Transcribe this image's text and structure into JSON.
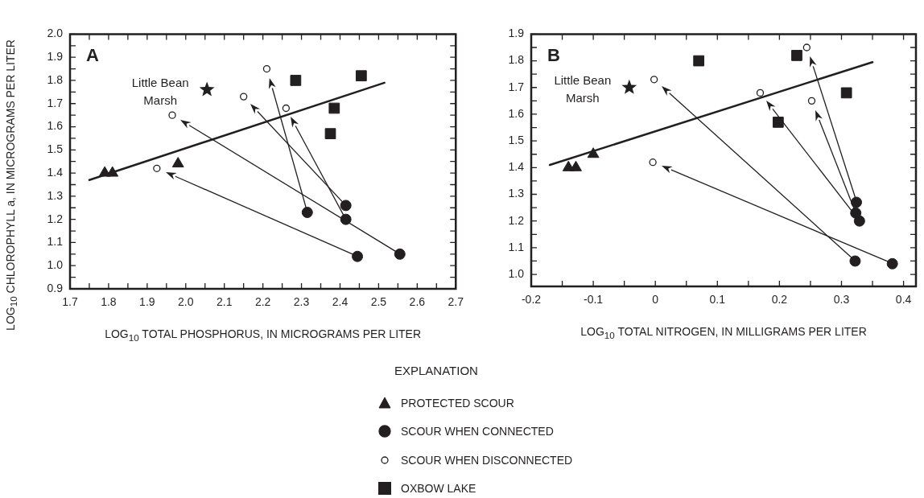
{
  "chart_data": [
    {
      "type": "scatter",
      "title": "A",
      "xlabel": "LOG$_{10}$ TOTAL PHOSPHORUS, IN MICROGRAMS PER LITER",
      "ylabel": "LOG$_{10}$ CHLOROPHYLL a, IN MICROGRAMS PER LITER",
      "legend_title": "EXPLANATION",
      "legend": "bottom",
      "xlim": [
        1.7,
        2.7
      ],
      "ylim": [
        0.9,
        2.0
      ],
      "xticks": [
        1.7,
        {
          "value": 1.75,
          "label": null
        },
        1.8,
        {
          "value": 1.85,
          "label": null
        },
        1.9,
        {
          "value": 1.95,
          "label": null
        },
        {
          "value": 2,
          "label": "2.0"
        },
        {
          "value": 2.05,
          "label": null
        },
        2.1,
        {
          "value": 2.15,
          "label": null
        },
        2.2,
        {
          "value": 2.25,
          "label": null
        },
        2.3,
        {
          "value": 2.35,
          "label": null
        },
        2.4,
        {
          "value": 2.45,
          "label": null
        },
        2.5,
        {
          "value": 2.55,
          "label": null
        },
        2.6,
        {
          "value": 2.65,
          "label": null
        },
        2.7
      ],
      "yticks": [
        0.9,
        {
          "value": 0.95,
          "label": null
        },
        {
          "value": 1,
          "label": "1.0"
        },
        {
          "value": 1.05,
          "label": null
        },
        1.1,
        {
          "value": 1.15,
          "label": null
        },
        1.2,
        {
          "value": 1.25,
          "label": null
        },
        1.3,
        {
          "value": 1.35,
          "label": null
        },
        1.4,
        {
          "value": 1.45,
          "label": null
        },
        1.5,
        {
          "value": 1.55,
          "label": null
        },
        1.6,
        {
          "value": 1.65,
          "label": null
        },
        1.7,
        {
          "value": 1.75,
          "label": null
        },
        1.8,
        {
          "value": 1.85,
          "label": null
        },
        1.9,
        {
          "value": 1.95,
          "label": null
        },
        {
          "value": 2,
          "label": "2.0"
        }
      ],
      "series": [
        {
          "name": "PROTECTED SCOUR",
          "type": "scatter",
          "marker": "triangle",
          "color": "#231f20",
          "x": [
            1.79,
            1.81,
            1.98
          ],
          "values": [
            1.4,
            1.4,
            1.44
          ]
        },
        {
          "name": "SCOUR WHEN CONNECTED",
          "type": "scatter",
          "marker": "circle",
          "color": "#231f20",
          "x": [
            2.315,
            2.415,
            2.415,
            2.445,
            2.555
          ],
          "values": [
            1.23,
            1.26,
            1.2,
            1.04,
            1.05
          ]
        },
        {
          "name": "SCOUR WHEN DISCONNECTED",
          "type": "scatter",
          "marker": "circle",
          "color": "#ffffff",
          "x": [
            2.21,
            2.15,
            2.26,
            1.925,
            1.965
          ],
          "values": [
            1.85,
            1.73,
            1.68,
            1.42,
            1.65
          ]
        },
        {
          "name": "OXBOW LAKE",
          "type": "scatter",
          "marker": "square",
          "color": "#231f20",
          "x": [
            2.285,
            2.455,
            2.385,
            2.375
          ],
          "values": [
            1.8,
            1.82,
            1.68,
            1.57
          ]
        },
        {
          "name": "Little Bean Marsh",
          "type": "scatter",
          "marker": "star",
          "color": "#231f20",
          "x": [
            2.055
          ],
          "values": [
            1.76
          ]
        },
        {
          "type": "line",
          "marker": "none",
          "line_style": "solid",
          "color": "#231f20",
          "x": [
            1.75,
            2.515
          ],
          "values": [
            1.37,
            1.79
          ]
        }
      ]
    },
    {
      "type": "scatter",
      "title": "B",
      "xlabel": "LOG$_{10}$ TOTAL NITROGEN, IN MILLIGRAMS PER LITER",
      "xlim": [
        -0.2,
        0.42
      ],
      "ylim": [
        0.955,
        1.9
      ],
      "xticks": [
        -0.2,
        {
          "value": -0.15,
          "label": null
        },
        -0.1,
        {
          "value": -0.05,
          "label": null
        },
        0,
        {
          "value": 0.05,
          "label": null
        },
        0.1,
        {
          "value": 0.15,
          "label": null
        },
        0.2,
        {
          "value": 0.25,
          "label": null
        },
        0.3,
        {
          "value": 0.35,
          "label": null
        },
        0.4
      ],
      "yticks": [
        {
          "value": 1,
          "label": "1.0"
        },
        {
          "value": 1.05,
          "label": null
        },
        1.1,
        {
          "value": 1.15,
          "label": null
        },
        1.2,
        {
          "value": 1.25,
          "label": null
        },
        1.3,
        {
          "value": 1.35,
          "label": null
        },
        1.4,
        {
          "value": 1.45,
          "label": null
        },
        1.5,
        {
          "value": 1.55,
          "label": null
        },
        1.6,
        {
          "value": 1.65,
          "label": null
        },
        1.7,
        {
          "value": 1.75,
          "label": null
        },
        1.8,
        {
          "value": 1.85,
          "label": null
        },
        1.9
      ],
      "series": [
        {
          "type": "scatter",
          "marker": "triangle",
          "color": "#231f20",
          "x": [
            -0.14,
            -0.128,
            -0.1
          ],
          "values": [
            1.4,
            1.4,
            1.45
          ]
        },
        {
          "type": "scatter",
          "marker": "circle",
          "color": "#231f20",
          "x": [
            0.324,
            0.323,
            0.329,
            0.322,
            0.382
          ],
          "values": [
            1.27,
            1.23,
            1.2,
            1.05,
            1.04
          ]
        },
        {
          "type": "scatter",
          "marker": "circle",
          "color": "#ffffff",
          "x": [
            0.244,
            0.252,
            0.169,
            -0.002,
            -0.004
          ],
          "values": [
            1.85,
            1.65,
            1.68,
            1.73,
            1.42
          ]
        },
        {
          "type": "scatter",
          "marker": "square",
          "color": "#231f20",
          "x": [
            0.07,
            0.228,
            0.308,
            0.198
          ],
          "values": [
            1.8,
            1.82,
            1.68,
            1.57
          ]
        },
        {
          "name": "Little Bean Marsh",
          "type": "scatter",
          "marker": "star",
          "color": "#231f20",
          "x": [
            -0.042
          ],
          "values": [
            1.7
          ]
        },
        {
          "type": "line",
          "marker": "none",
          "line_style": "solid",
          "color": "#231f20",
          "x": [
            -0.17,
            0.35
          ],
          "values": [
            1.41,
            1.795
          ]
        }
      ]
    }
  ]
}
